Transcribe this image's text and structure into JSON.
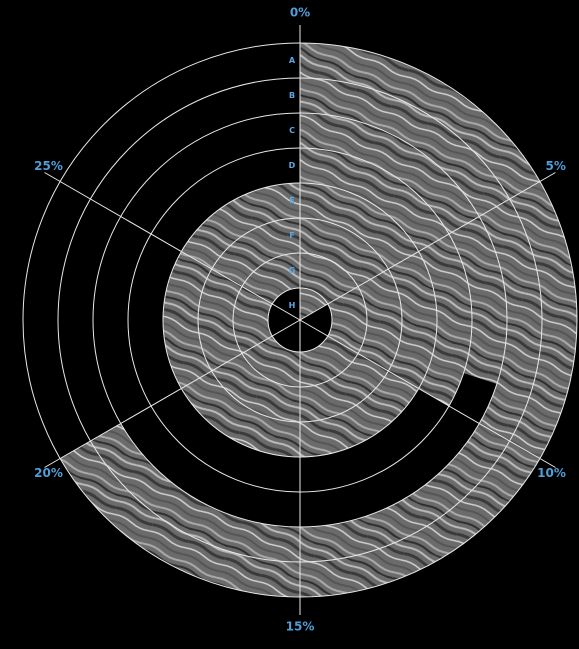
{
  "chart_data": {
    "type": "radial-bar",
    "categories": [
      "A",
      "B",
      "C",
      "D",
      "E",
      "F",
      "G",
      "H"
    ],
    "values": [
      20,
      20,
      9,
      10,
      30,
      30,
      30,
      5
    ],
    "thetalim": [
      0,
      30
    ],
    "thetaticks": [
      {
        "value": 0,
        "label": "0%"
      },
      {
        "value": 5,
        "label": "5%"
      },
      {
        "value": 10,
        "label": "10%"
      },
      {
        "value": 15,
        "label": "15%"
      },
      {
        "value": 20,
        "label": "20%"
      },
      {
        "value": 25,
        "label": "25%"
      }
    ],
    "grid": true
  }
}
